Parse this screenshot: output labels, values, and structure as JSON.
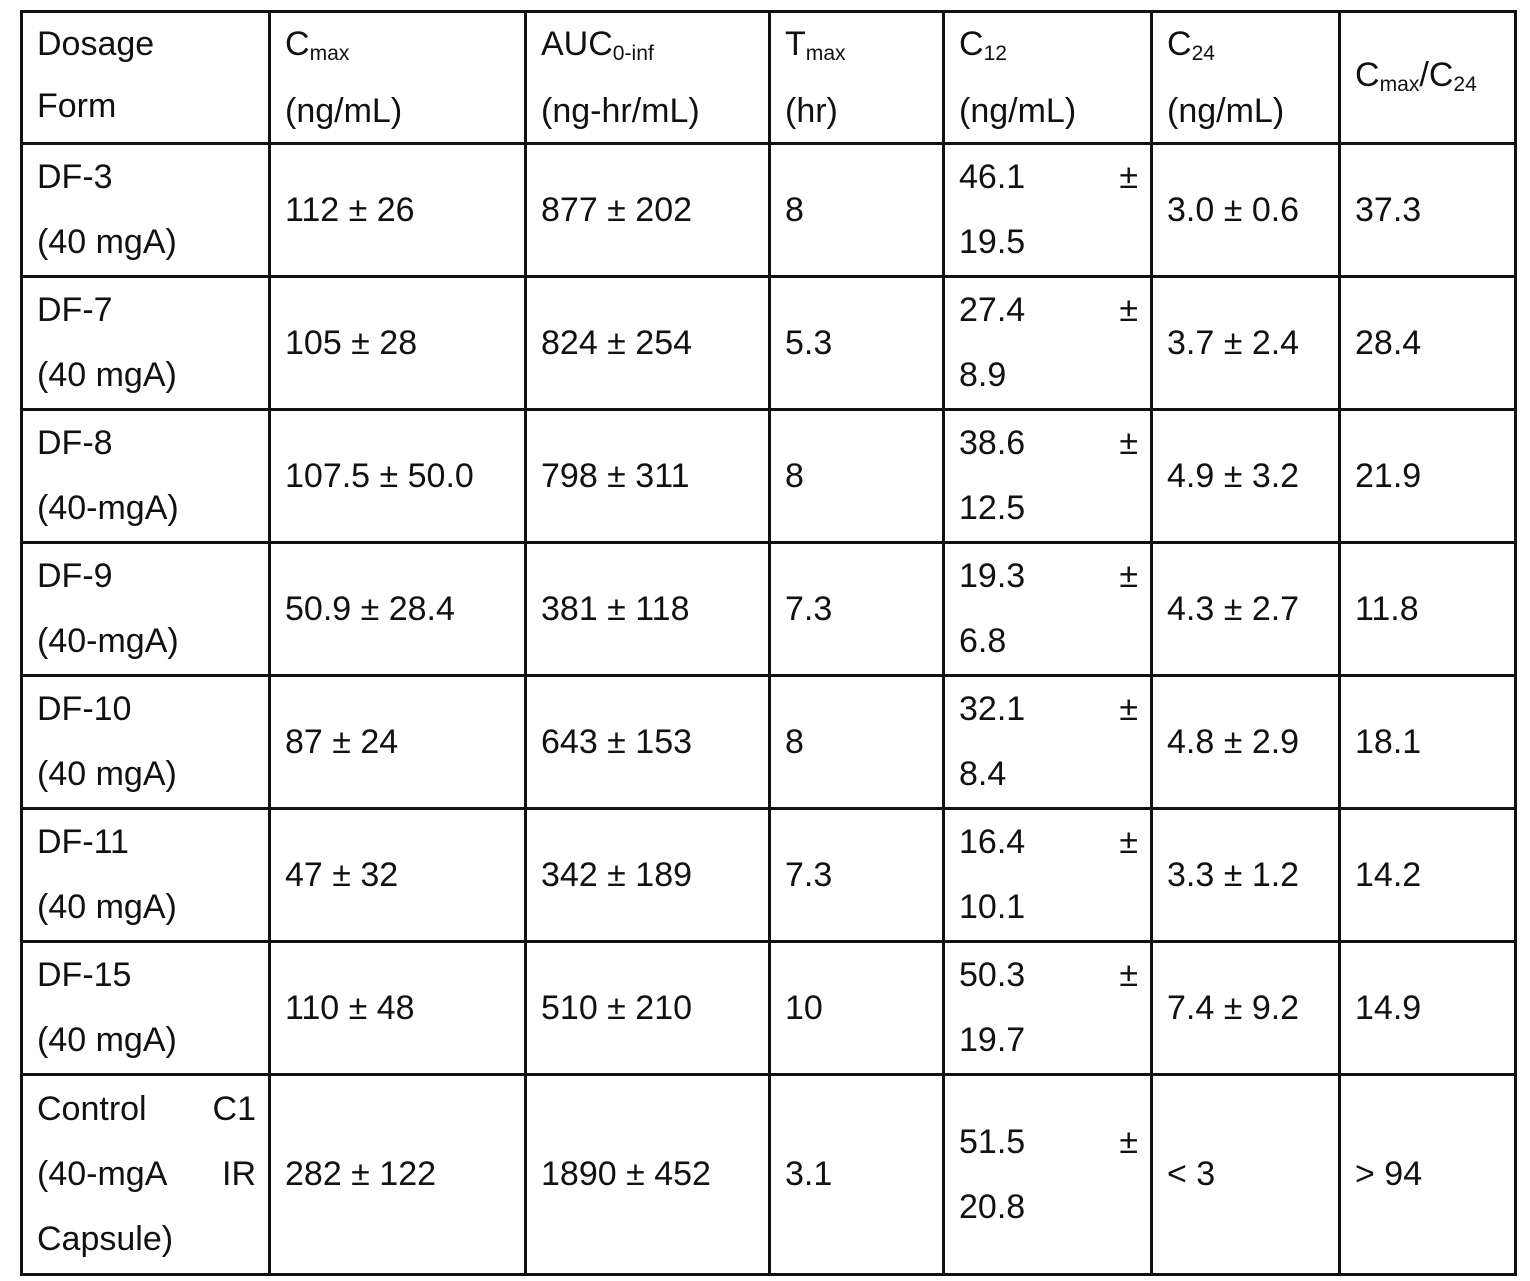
{
  "table": {
    "headers": {
      "dosage_form": {
        "line1": "Dosage",
        "line2": "Form"
      },
      "cmax": {
        "base": "C",
        "sub": "max",
        "unit": "(ng/mL)"
      },
      "auc": {
        "base": "AUC",
        "sub": "0-inf",
        "unit": "(ng-hr/mL)"
      },
      "tmax": {
        "base": "T",
        "sub": "max",
        "unit": "(hr)"
      },
      "c12": {
        "base": "C",
        "sub": "12",
        "unit": "(ng/mL)"
      },
      "c24": {
        "base": "C",
        "sub": "24",
        "unit": "(ng/mL)"
      },
      "ratio": {
        "base1": "C",
        "sub1": "max",
        "slash": "/C",
        "sub2": "24"
      }
    },
    "rows": [
      {
        "form": "DF-3",
        "dose": "(40 mgA)",
        "cmax": "112 ± 26",
        "auc": "877 ± 202",
        "tmax": "8",
        "c12_mean": "46.1",
        "c12_pm": "±",
        "c12_sd": "19.5",
        "c24": "3.0 ± 0.6",
        "ratio": "37.3"
      },
      {
        "form": "DF-7",
        "dose": "(40 mgA)",
        "cmax": "105 ± 28",
        "auc": "824 ± 254",
        "tmax": "5.3",
        "c12_mean": "27.4",
        "c12_pm": "±",
        "c12_sd": "8.9",
        "c24": "3.7 ± 2.4",
        "ratio": "28.4"
      },
      {
        "form": "DF-8",
        "dose": "(40-mgA)",
        "cmax": "107.5 ± 50.0",
        "auc": "798 ± 311",
        "tmax": "8",
        "c12_mean": "38.6",
        "c12_pm": "±",
        "c12_sd": "12.5",
        "c24": "4.9 ± 3.2",
        "ratio": "21.9"
      },
      {
        "form": "DF-9",
        "dose": "(40-mgA)",
        "cmax": "50.9 ± 28.4",
        "auc": "381 ± 118",
        "tmax": "7.3",
        "c12_mean": "19.3",
        "c12_pm": "±",
        "c12_sd": "6.8",
        "c24": "4.3 ± 2.7",
        "ratio": "11.8"
      },
      {
        "form": "DF-10",
        "dose": "(40 mgA)",
        "cmax": "87 ± 24",
        "auc": "643 ± 153",
        "tmax": "8",
        "c12_mean": "32.1",
        "c12_pm": "±",
        "c12_sd": "8.4",
        "c24": "4.8 ± 2.9",
        "ratio": "18.1"
      },
      {
        "form": "DF-11",
        "dose": "(40 mgA)",
        "cmax": "47 ± 32",
        "auc": "342 ± 189",
        "tmax": "7.3",
        "c12_mean": "16.4",
        "c12_pm": "±",
        "c12_sd": "10.1",
        "c24": "3.3 ± 1.2",
        "ratio": "14.2"
      },
      {
        "form": "DF-15",
        "dose": "(40 mgA)",
        "cmax": "110 ± 48",
        "auc": "510 ± 210",
        "tmax": "10",
        "c12_mean": "50.3",
        "c12_pm": "±",
        "c12_sd": "19.7",
        "c24": "7.4 ± 9.2",
        "ratio": "14.9"
      }
    ],
    "control": {
      "form_a": "Control",
      "form_b": "C1",
      "form_c": "(40-mgA",
      "form_d": "IR",
      "form_e": "Capsule)",
      "cmax": "282 ± 122",
      "auc": "1890 ± 452",
      "tmax": "3.1",
      "c12_mean": "51.5",
      "c12_pm": "±",
      "c12_sd": "20.8",
      "c24": "< 3",
      "ratio": "> 94"
    }
  }
}
